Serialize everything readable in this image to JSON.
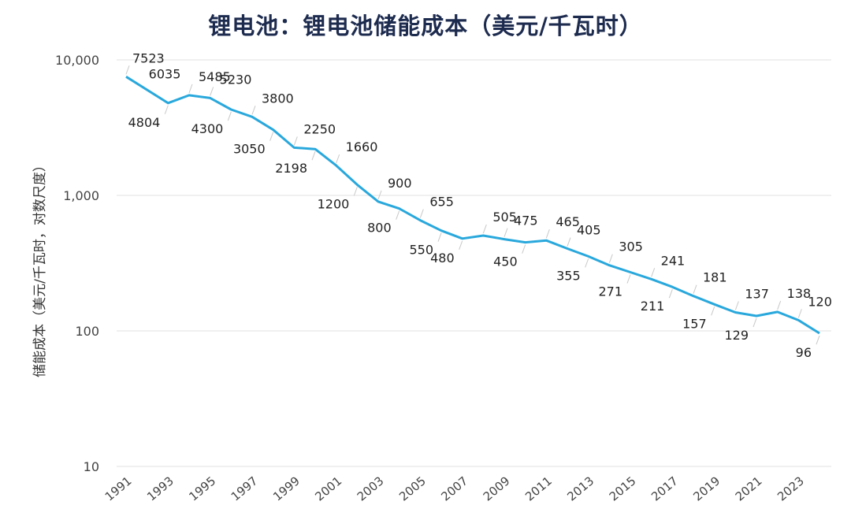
{
  "title": "锂电池：锂电池储能成本（美元/千瓦时）",
  "chart_data": {
    "type": "line",
    "title": "锂电池：锂电池储能成本（美元/千瓦时）",
    "ylabel": "储能成本（美元/千瓦时，对数尺度）",
    "xlabel": "",
    "yscale": "log",
    "ylim": [
      10,
      10000
    ],
    "yticks": [
      "10",
      "100",
      "1,000",
      "10,000"
    ],
    "xticks": [
      "1991",
      "1993",
      "1995",
      "1997",
      "1999",
      "2001",
      "2003",
      "2005",
      "2007",
      "2009",
      "2011",
      "2013",
      "2015",
      "2017",
      "2019",
      "2021",
      "2023"
    ],
    "grid": "horizontal",
    "color": "#29a8dc",
    "x": [
      1991,
      1993,
      1994,
      1995,
      1996,
      1997,
      1998,
      1999,
      2000,
      2001,
      2002,
      2003,
      2004,
      2005,
      2006,
      2007,
      2008,
      2009,
      2010,
      2011,
      2012,
      2013,
      2014,
      2015,
      2016,
      2017,
      2018,
      2019,
      2020,
      2021,
      2022,
      2023,
      2024
    ],
    "values": [
      7523,
      4804,
      5485,
      5230,
      4300,
      3800,
      3050,
      2250,
      2198,
      1660,
      1200,
      900,
      800,
      655,
      550,
      480,
      505,
      475,
      450,
      465,
      405,
      355,
      305,
      271,
      241,
      211,
      181,
      157,
      137,
      129,
      138,
      120,
      96
    ],
    "labels": [
      "7523",
      "4804",
      "5485",
      "5230",
      "4300",
      "3800",
      "3050",
      "2250",
      "2198",
      "1660",
      "1200",
      "900",
      "800",
      "655",
      "550",
      "480",
      "505",
      "475",
      "450",
      "465",
      "405",
      "355",
      "305",
      "271",
      "241",
      "211",
      "181",
      "157",
      "137",
      "129",
      "138",
      "120",
      "96"
    ],
    "extra_labels": [
      "6035"
    ]
  }
}
